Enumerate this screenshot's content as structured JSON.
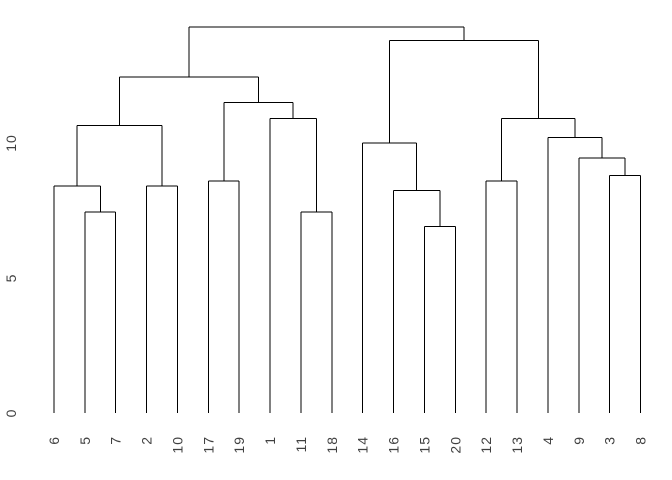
{
  "chart_data": {
    "type": "dendrogram",
    "title": "",
    "orientation": "vertical",
    "xlabel": "",
    "ylabel": "",
    "yticks": [
      0,
      5,
      10
    ],
    "ylim": [
      0,
      14.5
    ],
    "grid": false,
    "legend": false,
    "leaf_order": [
      "6",
      "5",
      "7",
      "2",
      "10",
      "17",
      "19",
      "1",
      "11",
      "18",
      "14",
      "16",
      "15",
      "20",
      "12",
      "13",
      "4",
      "9",
      "3",
      "8"
    ],
    "tree": {
      "h": 14.3,
      "c": [
        {
          "h": 12.45,
          "c": [
            {
              "h": 10.65,
              "c": [
                {
                  "h": 8.4,
                  "c": [
                    "6",
                    {
                      "h": 7.45,
                      "c": [
                        "5",
                        "7"
                      ]
                    }
                  ]
                },
                {
                  "h": 8.4,
                  "c": [
                    "2",
                    "10"
                  ]
                }
              ]
            },
            {
              "h": 11.5,
              "c": [
                {
                  "h": 8.6,
                  "c": [
                    "17",
                    "19"
                  ]
                },
                {
                  "h": 10.9,
                  "c": [
                    "1",
                    {
                      "h": 7.45,
                      "c": [
                        "11",
                        "18"
                      ]
                    }
                  ]
                }
              ]
            }
          ]
        },
        {
          "h": 13.8,
          "c": [
            {
              "h": 10.0,
              "c": [
                "14",
                {
                  "h": 8.25,
                  "c": [
                    "16",
                    {
                      "h": 6.9,
                      "c": [
                        "15",
                        "20"
                      ]
                    }
                  ]
                }
              ]
            },
            {
              "h": 10.9,
              "c": [
                {
                  "h": 8.6,
                  "c": [
                    "12",
                    "13"
                  ]
                },
                {
                  "h": 10.2,
                  "c": [
                    "4",
                    {
                      "h": 9.45,
                      "c": [
                        "9",
                        {
                          "h": 8.8,
                          "c": [
                            "3",
                            "8"
                          ]
                        }
                      ]
                    }
                  ]
                }
              ]
            }
          ]
        }
      ]
    },
    "colors": {
      "line": "#000000",
      "text": "#404040",
      "background": "#ffffff"
    }
  }
}
